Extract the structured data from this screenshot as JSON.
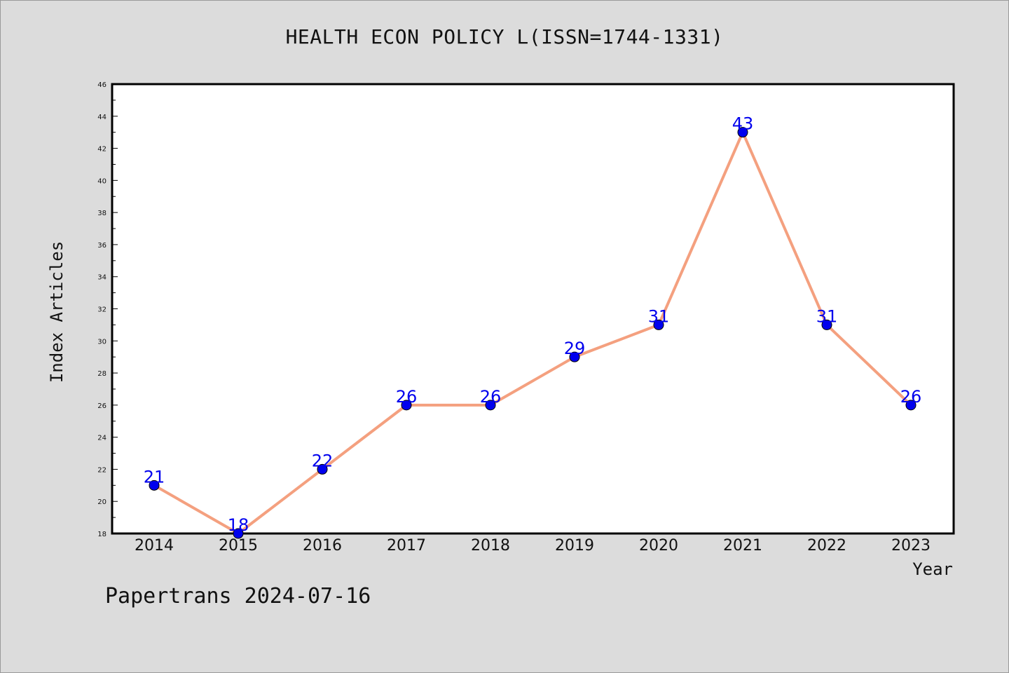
{
  "title": "HEALTH ECON POLICY L(ISSN=1744-1331)",
  "footer": "Papertrans 2024-07-16",
  "chart_data": {
    "type": "line",
    "title": "HEALTH ECON POLICY L(ISSN=1744-1331)",
    "xlabel": "Year",
    "ylabel": "Index Articles",
    "categories": [
      "2014",
      "2015",
      "2016",
      "2017",
      "2018",
      "2019",
      "2020",
      "2021",
      "2022",
      "2023"
    ],
    "series": [
      {
        "values": [
          21,
          18,
          22,
          26,
          26,
          29,
          31,
          43,
          31,
          26
        ]
      }
    ],
    "ylim": [
      18,
      46
    ],
    "yticks": [
      18,
      20,
      22,
      24,
      26,
      28,
      30,
      32,
      34,
      36,
      38,
      40,
      42,
      44,
      46
    ],
    "grid": false,
    "line_color": "#f4a07f",
    "marker_color": "#0000ee",
    "label_color": "#0000ee"
  }
}
